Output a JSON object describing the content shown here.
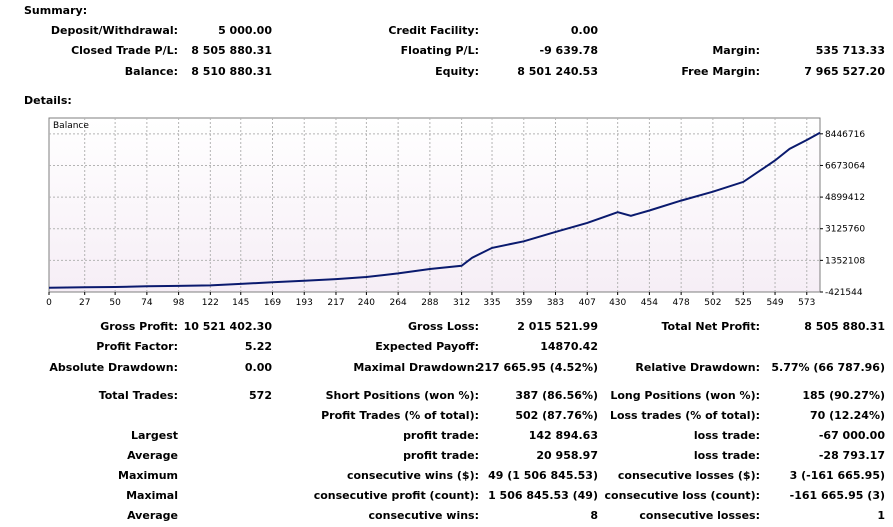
{
  "summary": {
    "heading": "Summary:",
    "deposit_label": "Deposit/Withdrawal:",
    "deposit_value": "5 000.00",
    "credit_label": "Credit Facility:",
    "credit_value": "0.00",
    "closed_pl_label": "Closed Trade P/L:",
    "closed_pl_value": "8 505 880.31",
    "floating_pl_label": "Floating P/L:",
    "floating_pl_value": "-9 639.78",
    "margin_label": "Margin:",
    "margin_value": "535 713.33",
    "balance_label": "Balance:",
    "balance_value": "8 510 880.31",
    "equity_label": "Equity:",
    "equity_value": "8 501 240.53",
    "free_margin_label": "Free Margin:",
    "free_margin_value": "7 965 527.20"
  },
  "details": {
    "heading": "Details:",
    "gross_profit_label": "Gross Profit:",
    "gross_profit_value": "10 521 402.30",
    "gross_loss_label": "Gross Loss:",
    "gross_loss_value": "2 015 521.99",
    "net_profit_label": "Total Net Profit:",
    "net_profit_value": "8 505 880.31",
    "profit_factor_label": "Profit Factor:",
    "profit_factor_value": "5.22",
    "expected_payoff_label": "Expected Payoff:",
    "expected_payoff_value": "14870.42",
    "abs_drawdown_label": "Absolute Drawdown:",
    "abs_drawdown_value": "0.00",
    "max_drawdown_label": "Maximal Drawdown:",
    "max_drawdown_value": "217 665.95 (4.52%)",
    "rel_drawdown_label": "Relative Drawdown:",
    "rel_drawdown_value": "5.77% (66 787.96)",
    "total_trades_label": "Total Trades:",
    "total_trades_value": "572",
    "short_label": "Short Positions (won %):",
    "short_value": "387 (86.56%)",
    "long_label": "Long Positions (won %):",
    "long_value": "185 (90.27%)",
    "profit_trades_label": "Profit Trades (% of total):",
    "profit_trades_value": "502 (87.76%)",
    "loss_trades_label": "Loss trades (% of total):",
    "loss_trades_value": "70 (12.24%)",
    "largest_label": "Largest",
    "largest_profit_label": "profit trade:",
    "largest_profit_value": "142 894.63",
    "largest_loss_label": "loss trade:",
    "largest_loss_value": "-67 000.00",
    "average_label": "Average",
    "avg_profit_label": "profit trade:",
    "avg_profit_value": "20 958.97",
    "avg_loss_label": "loss trade:",
    "avg_loss_value": "-28 793.17",
    "maximum_label": "Maximum",
    "max_wins_label": "consecutive wins ($):",
    "max_wins_value": "49 (1 506 845.53)",
    "max_losses_label": "consecutive losses ($):",
    "max_losses_value": "3 (-161 665.95)",
    "maximal_label": "Maximal",
    "maximal_profit_label": "consecutive profit (count):",
    "maximal_profit_value": "1 506 845.53 (49)",
    "maximal_loss_label": "consecutive loss (count):",
    "maximal_loss_value": "-161 665.95 (3)",
    "average2_label": "Average",
    "avg_wins_label": "consecutive wins:",
    "avg_wins_value": "8",
    "avg_losses_label": "consecutive losses:",
    "avg_losses_value": "1"
  },
  "chart_data": {
    "type": "line",
    "title": "Balance",
    "x_ticks": [
      0,
      27,
      50,
      74,
      98,
      122,
      145,
      169,
      193,
      217,
      240,
      264,
      288,
      312,
      335,
      359,
      383,
      407,
      430,
      454,
      478,
      502,
      525,
      549,
      573
    ],
    "y_ticks": [
      -421544,
      1352108,
      3125760,
      4899412,
      6673064,
      8446716
    ],
    "xlim": [
      0,
      583
    ],
    "ylim": [
      -421544,
      9333542
    ],
    "line_color": "#0a1a6e",
    "grid": true,
    "series": [
      {
        "x": [
          0,
          27,
          50,
          74,
          98,
          122,
          145,
          169,
          193,
          217,
          240,
          264,
          288,
          312,
          320,
          335,
          359,
          383,
          407,
          430,
          440,
          454,
          478,
          502,
          525,
          549,
          560,
          573,
          583
        ],
        "y": [
          -180000,
          -160000,
          -140000,
          -100000,
          -80000,
          -50000,
          30000,
          120000,
          210000,
          300000,
          420000,
          620000,
          870000,
          1050000,
          1500000,
          2050000,
          2420000,
          2950000,
          3450000,
          4050000,
          3850000,
          4150000,
          4700000,
          5200000,
          5750000,
          6950000,
          7600000,
          8100000,
          8510880
        ]
      }
    ]
  }
}
